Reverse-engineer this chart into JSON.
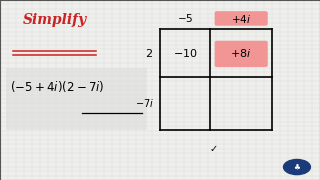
{
  "bg_color": "#efefec",
  "title": "Simplify",
  "title_color": "#cc2222",
  "highlight_color": "#f48080",
  "grid_bg": "#f5f5f2",
  "border_color": "#aaaaaa"
}
